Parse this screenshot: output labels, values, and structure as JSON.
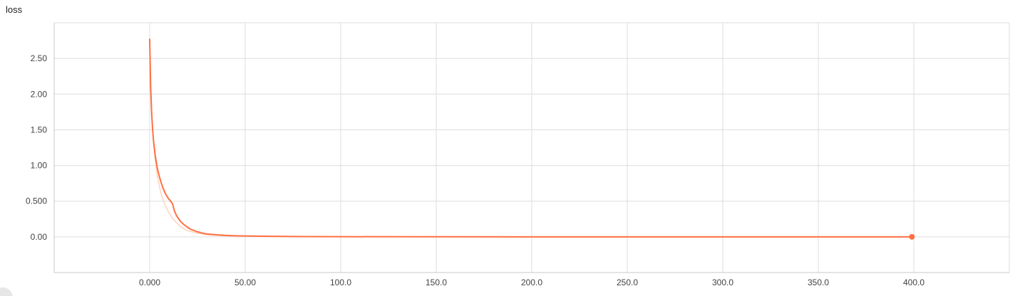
{
  "chart_data": {
    "type": "line",
    "title": "loss",
    "xlabel": "",
    "ylabel": "",
    "xlim": [
      -50,
      450
    ],
    "ylim": [
      -0.5,
      3.0
    ],
    "x_ticks": [
      {
        "value": 0,
        "label": "0.000"
      },
      {
        "value": 50,
        "label": "50.00"
      },
      {
        "value": 100,
        "label": "100.0"
      },
      {
        "value": 150,
        "label": "150.0"
      },
      {
        "value": 200,
        "label": "200.0"
      },
      {
        "value": 250,
        "label": "250.0"
      },
      {
        "value": 300,
        "label": "300.0"
      },
      {
        "value": 350,
        "label": "350.0"
      },
      {
        "value": 400,
        "label": "400.0"
      }
    ],
    "y_ticks": [
      {
        "value": 0,
        "label": "0.00"
      },
      {
        "value": 0.5,
        "label": "0.500"
      },
      {
        "value": 1.0,
        "label": "1.00"
      },
      {
        "value": 1.5,
        "label": "1.50"
      },
      {
        "value": 2.0,
        "label": "2.00"
      },
      {
        "value": 2.5,
        "label": "2.50"
      }
    ],
    "grid": true,
    "legend": "none",
    "series": [
      {
        "role": "raw",
        "color": "#fdd3c0",
        "x": [
          0,
          1,
          2,
          3,
          4,
          5,
          6,
          8,
          10,
          12,
          14,
          16,
          18,
          20,
          25,
          30,
          35,
          40,
          50,
          60,
          80,
          100,
          150,
          200,
          250,
          300,
          350,
          399
        ],
        "y": [
          2.7,
          1.7,
          1.3,
          1.05,
          0.85,
          0.72,
          0.6,
          0.45,
          0.34,
          0.26,
          0.2,
          0.15,
          0.11,
          0.085,
          0.05,
          0.03,
          0.02,
          0.013,
          0.007,
          0.004,
          0.002,
          0.001,
          0.0005,
          0.0003,
          0.0002,
          0.0001,
          0.0001,
          0.0001
        ]
      },
      {
        "role": "smoothed",
        "color": "#ff7043",
        "x": [
          0,
          0.5,
          1,
          1.5,
          2,
          3,
          4,
          5,
          6,
          7,
          8,
          9,
          10,
          11,
          12,
          13,
          14,
          15,
          16,
          18,
          20,
          22,
          25,
          28,
          30,
          35,
          40,
          45,
          50,
          60,
          70,
          80,
          100,
          150,
          200,
          250,
          300,
          350,
          399
        ],
        "y": [
          2.77,
          2.1,
          1.75,
          1.52,
          1.35,
          1.12,
          0.96,
          0.85,
          0.76,
          0.68,
          0.62,
          0.57,
          0.53,
          0.5,
          0.46,
          0.36,
          0.3,
          0.26,
          0.22,
          0.17,
          0.13,
          0.1,
          0.07,
          0.05,
          0.04,
          0.028,
          0.02,
          0.015,
          0.012,
          0.008,
          0.006,
          0.004,
          0.002,
          0.0008,
          0.0004,
          0.0002,
          0.0001,
          0.0001,
          0.0001
        ]
      }
    ],
    "end_marker": {
      "x": 399,
      "y": 0.0001,
      "color": "#ff7043"
    }
  }
}
